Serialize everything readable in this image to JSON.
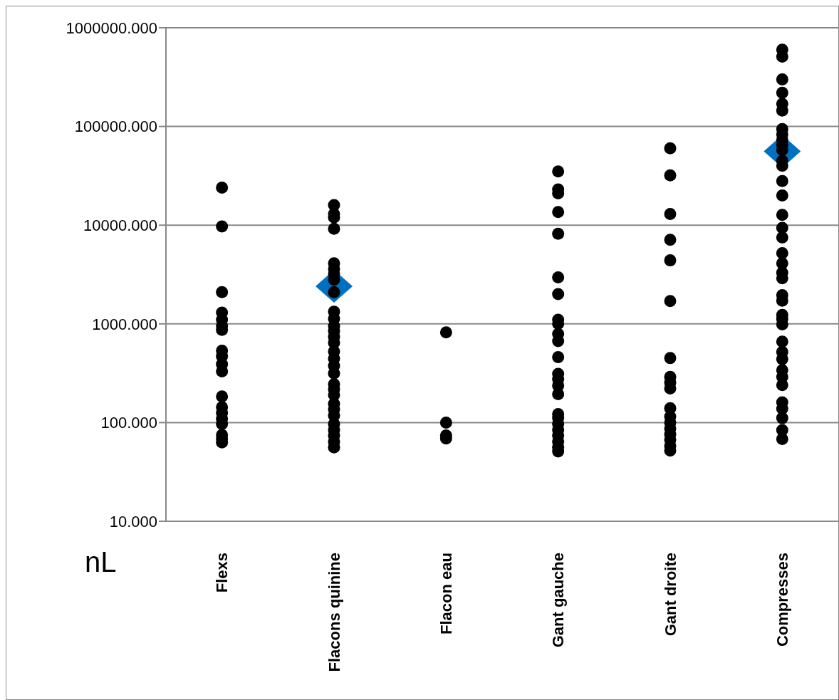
{
  "chart_data": {
    "type": "scatter",
    "ylabel": "nL",
    "categories": [
      "Flexs",
      "Flacons quinine",
      "Flacon eau",
      "Gant gauche",
      "Gant droite",
      "Compresses"
    ],
    "log": "y",
    "ylim": [
      10,
      1000000
    ],
    "yticks": [
      {
        "value": 10,
        "label": "10.000"
      },
      {
        "value": 100,
        "label": "100.000"
      },
      {
        "value": 1000,
        "label": "1000.000"
      },
      {
        "value": 10000,
        "label": "10000.000"
      },
      {
        "value": 100000,
        "label": "100000.000"
      },
      {
        "value": 1000000,
        "label": "1000000.000"
      }
    ],
    "grid": "y",
    "series": [
      {
        "color": "#000000",
        "marker": "circle",
        "x": [
          "Flexs",
          "Flexs",
          "Flexs",
          "Flexs",
          "Flexs",
          "Flexs",
          "Flexs",
          "Flexs",
          "Flexs",
          "Flexs",
          "Flexs",
          "Flexs",
          "Flexs",
          "Flexs",
          "Flexs",
          "Flexs",
          "Flexs",
          "Flexs",
          "Flexs",
          "Flacons quinine",
          "Flacons quinine",
          "Flacons quinine",
          "Flacons quinine",
          "Flacons quinine",
          "Flacons quinine",
          "Flacons quinine",
          "Flacons quinine",
          "Flacons quinine",
          "Flacons quinine",
          "Flacons quinine",
          "Flacons quinine",
          "Flacons quinine",
          "Flacons quinine",
          "Flacons quinine",
          "Flacons quinine",
          "Flacons quinine",
          "Flacons quinine",
          "Flacons quinine",
          "Flacons quinine",
          "Flacons quinine",
          "Flacons quinine",
          "Flacons quinine",
          "Flacons quinine",
          "Flacons quinine",
          "Flacons quinine",
          "Flacons quinine",
          "Flacons quinine",
          "Flacons quinine",
          "Flacons quinine",
          "Flacon eau",
          "Flacon eau",
          "Flacon eau",
          "Flacon eau",
          "Gant gauche",
          "Gant gauche",
          "Gant gauche",
          "Gant gauche",
          "Gant gauche",
          "Gant gauche",
          "Gant gauche",
          "Gant gauche",
          "Gant gauche",
          "Gant gauche",
          "Gant gauche",
          "Gant gauche",
          "Gant gauche",
          "Gant gauche",
          "Gant gauche",
          "Gant gauche",
          "Gant gauche",
          "Gant gauche",
          "Gant gauche",
          "Gant gauche",
          "Gant gauche",
          "Gant gauche",
          "Gant gauche",
          "Gant gauche",
          "Gant droite",
          "Gant droite",
          "Gant droite",
          "Gant droite",
          "Gant droite",
          "Gant droite",
          "Gant droite",
          "Gant droite",
          "Gant droite",
          "Gant droite",
          "Gant droite",
          "Gant droite",
          "Gant droite",
          "Gant droite",
          "Gant droite",
          "Gant droite",
          "Gant droite",
          "Gant droite",
          "Compresses",
          "Compresses",
          "Compresses",
          "Compresses",
          "Compresses",
          "Compresses",
          "Compresses",
          "Compresses",
          "Compresses",
          "Compresses",
          "Compresses",
          "Compresses",
          "Compresses",
          "Compresses",
          "Compresses",
          "Compresses",
          "Compresses",
          "Compresses",
          "Compresses",
          "Compresses",
          "Compresses",
          "Compresses",
          "Compresses",
          "Compresses",
          "Compresses",
          "Compresses",
          "Compresses",
          "Compresses",
          "Compresses",
          "Compresses",
          "Compresses",
          "Compresses",
          "Compresses",
          "Compresses",
          "Compresses",
          "Compresses",
          "Compresses",
          "Compresses"
        ],
        "values": [
          24000,
          9700,
          2100,
          1300,
          1100,
          950,
          870,
          535,
          470,
          390,
          330,
          184,
          143,
          125,
          109,
          97,
          75,
          69,
          63,
          16000,
          13000,
          12000,
          9200,
          4100,
          3600,
          3200,
          2800,
          2100,
          1330,
          1130,
          950,
          845,
          740,
          645,
          525,
          445,
          375,
          316,
          245,
          218,
          190,
          155,
          136,
          118,
          97,
          84,
          74,
          64,
          56,
          820,
          100,
          74,
          69,
          35000,
          23000,
          21000,
          13600,
          8200,
          2960,
          2000,
          1100,
          1000,
          790,
          670,
          460,
          311,
          276,
          237,
          194,
          122,
          111,
          97,
          84,
          74,
          64,
          56,
          51,
          60000,
          32000,
          13000,
          7100,
          4400,
          1700,
          450,
          290,
          254,
          222,
          140,
          115,
          100,
          87,
          76,
          67,
          58,
          52,
          600000,
          510000,
          300000,
          220000,
          170000,
          145000,
          94000,
          83000,
          73000,
          65000,
          58000,
          45000,
          40000,
          28000,
          20000,
          12700,
          9400,
          7500,
          5200,
          4100,
          3300,
          2900,
          1950,
          1720,
          1230,
          1120,
          990,
          660,
          520,
          440,
          340,
          290,
          240,
          160,
          138,
          111,
          84,
          68
        ]
      },
      {
        "color": "#0070c0",
        "marker": "diamond",
        "x": [
          "Flacons quinine",
          "Compresses"
        ],
        "values": [
          2400,
          56000
        ]
      }
    ]
  }
}
